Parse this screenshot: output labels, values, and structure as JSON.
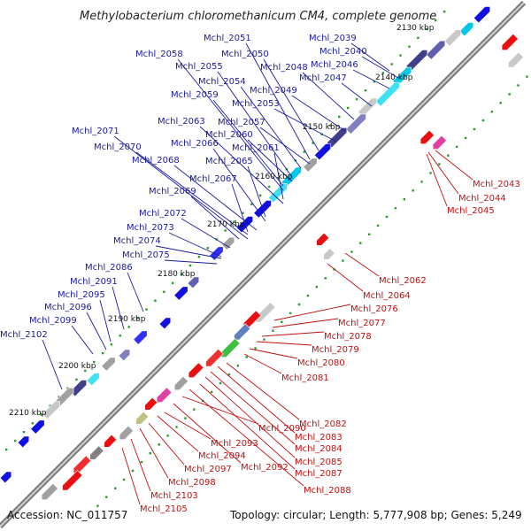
{
  "title": "Methylobacterium chloromethanicum CM4, complete genome",
  "footer": {
    "accession": "Accession: NC_011757",
    "summary": "Topology: circular; Length: 5,777,908 bp; Genes: 5,249"
  },
  "colors": {
    "forward_label": "#1a1aa0",
    "reverse_label": "#c01010",
    "forward_gene": "#1010e0",
    "reverse_gene": "#e81010",
    "backbone": "#8a8a8a",
    "tick": "#2a9a2a"
  },
  "kbp_marks": [
    "2130 kbp",
    "2140 kbp",
    "2150 kbp",
    "2160 kbp",
    "2170 kbp",
    "2180 kbp",
    "2190 kbp",
    "2200 kbp",
    "2210 kbp"
  ],
  "forward_labels": [
    "Mchl_2039",
    "Mchl_2040",
    "Mchl_2046",
    "Mchl_2047",
    "Mchl_2048",
    "Mchl_2049",
    "Mchl_2050",
    "Mchl_2051",
    "Mchl_2053",
    "Mchl_2054",
    "Mchl_2055",
    "Mchl_2057",
    "Mchl_2058",
    "Mchl_2059",
    "Mchl_2060",
    "Mchl_2061",
    "Mchl_2063",
    "Mchl_2065",
    "Mchl_2066",
    "Mchl_2067",
    "Mchl_2068",
    "Mchl_2069",
    "Mchl_2070",
    "Mchl_2071",
    "Mchl_2072",
    "Mchl_2073",
    "Mchl_2074",
    "Mchl_2075",
    "Mchl_2086",
    "Mchl_2091",
    "Mchl_2095",
    "Mchl_2096",
    "Mchl_2099",
    "Mchl_2102"
  ],
  "reverse_labels": [
    "Mchl_2043",
    "Mchl_2044",
    "Mchl_2045",
    "Mchl_2062",
    "Mchl_2064",
    "Mchl_2076",
    "Mchl_2077",
    "Mchl_2078",
    "Mchl_2079",
    "Mchl_2080",
    "Mchl_2081",
    "Mchl_2082",
    "Mchl_2083",
    "Mchl_2084",
    "Mchl_2085",
    "Mchl_2087",
    "Mchl_2088",
    "Mchl_2090",
    "Mchl_2092",
    "Mchl_2093",
    "Mchl_2094",
    "Mchl_2097",
    "Mchl_2098",
    "Mchl_2103",
    "Mchl_2105"
  ]
}
